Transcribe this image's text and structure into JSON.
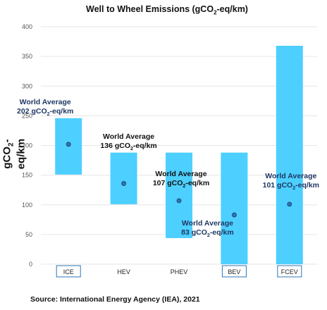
{
  "chart_data": {
    "type": "bar",
    "title": "Well to Wheel Emissions  (gCO",
    "title_sub": "2",
    "title_tail": "-eq/km)",
    "ylabel": "gCO",
    "ylabel_sub": "2",
    "ylabel_tail": "-eq/km",
    "xlabel": "",
    "ylim": [
      0,
      400
    ],
    "yticks": [
      0,
      50,
      100,
      150,
      200,
      250,
      300,
      350,
      400
    ],
    "grid": true,
    "categories": [
      "ICE",
      "HEV",
      "PHEV",
      "BEV",
      "FCEV"
    ],
    "boxed_categories": [
      "ICE",
      "BEV",
      "FCEV"
    ],
    "ranges": [
      {
        "category": "ICE",
        "low": 151,
        "high": 246
      },
      {
        "category": "HEV",
        "low": 101,
        "high": 188
      },
      {
        "category": "PHEV",
        "low": 44,
        "high": 188
      },
      {
        "category": "BEV",
        "low": 0,
        "high": 188
      },
      {
        "category": "FCEV",
        "low": 0,
        "high": 368
      }
    ],
    "world_average": [
      {
        "category": "ICE",
        "value": 202,
        "line1": "World Average",
        "line2_pre": "202 gCO",
        "line2_sub": "2",
        "line2_post": "-eq/km",
        "color": "#1f3864"
      },
      {
        "category": "HEV",
        "value": 136,
        "line1": "World Average",
        "line2_pre": "136 gCO",
        "line2_sub": "2",
        "line2_post": "-eq/km",
        "color": "#111111"
      },
      {
        "category": "PHEV",
        "value": 107,
        "line1": "World Average",
        "line2_pre": "107 gCO",
        "line2_sub": "2",
        "line2_post": "-eq/km",
        "color": "#111111"
      },
      {
        "category": "BEV",
        "value": 83,
        "line1": "World Average",
        "line2_pre": "83 gCO",
        "line2_sub": "2",
        "line2_post": "-eq/km",
        "color": "#1f3864"
      },
      {
        "category": "FCEV",
        "value": 101,
        "line1": "World Average",
        "line2_pre": "101 gCO",
        "line2_sub": "2",
        "line2_post": "-eq/km",
        "color": "#1f3864"
      }
    ],
    "colors": {
      "bar": "#4dcfff",
      "marker": "#2e75b6",
      "marker_edge": "#1f3864",
      "box": "#2e75b6",
      "grid": "#e6e6e6",
      "axis_text": "#555555"
    }
  },
  "source": "Source: International Energy Agency (IEA), 2021"
}
